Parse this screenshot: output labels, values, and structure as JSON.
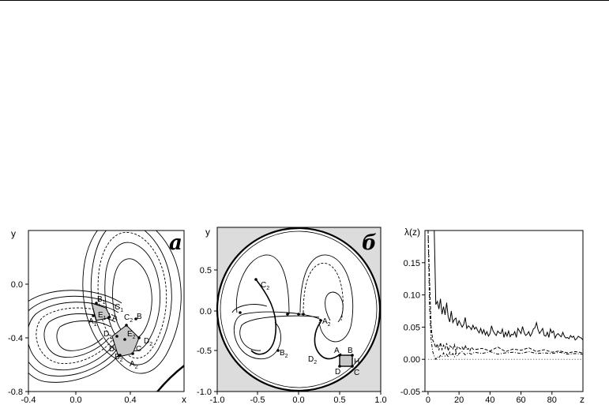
{
  "panels": {
    "a": {
      "letter": "a",
      "x_axis": "x",
      "y_axis": "y",
      "x_ticks": [
        "-0.4",
        "0.0",
        "0.4"
      ],
      "y_ticks": [
        "0.0",
        "-0.4",
        "-0.8"
      ],
      "points": {
        "B1": "B",
        "A1": "A",
        "E1": "E",
        "C1": "C",
        "A": "A",
        "D1": "D",
        "C2": "C",
        "B": "B",
        "E": "E",
        "D": "D",
        "B2": "B",
        "A2": "A",
        "C": "C",
        "D2": "D"
      }
    },
    "b": {
      "letter": "б",
      "x_axis": "x",
      "y_axis": "y",
      "x_ticks": [
        "-1.0",
        "-0.5",
        "0.0",
        "0.5",
        "1.0"
      ],
      "y_ticks": [
        "0.5",
        "0.0",
        "-0.5",
        "-1.0"
      ],
      "points": {
        "C2": "C",
        "A2": "A",
        "B2": "B",
        "D2": "D",
        "A": "A",
        "B": "B",
        "H": "H",
        "D": "D",
        "C": "C"
      }
    },
    "c": {
      "y_axis": "λ(z)",
      "x_axis": "z",
      "x_ticks": [
        "0",
        "20",
        "40",
        "60",
        "80"
      ],
      "y_ticks": [
        "0.15",
        "0.10",
        "0.05",
        "0.00",
        "-0.05"
      ]
    }
  },
  "chart_data": {
    "type": "line",
    "title": "",
    "xlabel": "z",
    "ylabel": "λ(z)",
    "xlim": [
      -2,
      100
    ],
    "ylim": [
      -0.05,
      0.2
    ],
    "series": [
      {
        "style": "solid",
        "x": [
          1,
          2,
          3,
          4,
          5,
          6,
          7,
          8,
          9,
          10,
          11,
          12,
          13,
          14,
          15,
          16,
          17,
          18,
          19,
          20,
          21,
          22,
          23,
          24,
          25,
          26,
          27,
          28,
          29,
          30,
          31,
          32,
          33,
          34,
          35,
          36,
          37,
          38,
          39,
          40,
          41,
          42,
          43,
          44,
          45,
          46,
          47,
          48,
          49,
          50,
          51,
          52,
          53,
          54,
          55,
          56,
          57,
          58,
          59,
          60,
          61,
          62,
          63,
          64,
          65,
          66,
          67,
          68,
          69,
          70,
          71,
          72,
          73,
          74,
          75,
          76,
          77,
          78,
          79,
          80,
          81,
          82,
          83,
          84,
          85,
          86,
          87,
          88,
          89,
          90,
          91,
          92,
          93,
          94,
          95,
          96,
          97,
          98,
          99,
          100,
          101,
          102
        ],
        "values": [
          0.2,
          0.2,
          0.2,
          0.2,
          0.085,
          0.09,
          0.078,
          0.094,
          0.07,
          0.082,
          0.069,
          0.088,
          0.066,
          0.058,
          0.075,
          0.057,
          0.062,
          0.064,
          0.052,
          0.06,
          0.055,
          0.05,
          0.054,
          0.065,
          0.048,
          0.052,
          0.05,
          0.046,
          0.053,
          0.047,
          0.05,
          0.045,
          0.041,
          0.048,
          0.04,
          0.046,
          0.038,
          0.043,
          0.036,
          0.04,
          0.052,
          0.044,
          0.04,
          0.037,
          0.044,
          0.041,
          0.04,
          0.047,
          0.034,
          0.042,
          0.036,
          0.044,
          0.035,
          0.039,
          0.038,
          0.043,
          0.034,
          0.048,
          0.044,
          0.04,
          0.051,
          0.042,
          0.037,
          0.039,
          0.043,
          0.036,
          0.04,
          0.047,
          0.049,
          0.057,
          0.046,
          0.04,
          0.044,
          0.048,
          0.037,
          0.036,
          0.042,
          0.034,
          0.047,
          0.041,
          0.044,
          0.033,
          0.038,
          0.04,
          0.037,
          0.035,
          0.042,
          0.036,
          0.033,
          0.034,
          0.032,
          0.037,
          0.034,
          0.036,
          0.03,
          0.032,
          0.036,
          0.034,
          0.033,
          0.03,
          0.034,
          0.031
        ]
      },
      {
        "style": "dashed",
        "x": [
          0,
          1,
          2,
          3,
          4,
          5,
          6,
          7,
          8,
          9,
          10,
          11,
          12,
          13,
          14,
          15,
          16,
          17,
          18,
          19,
          20,
          21,
          22,
          23,
          24,
          25,
          26,
          27,
          28,
          29,
          30,
          35,
          40,
          45,
          50,
          55,
          60,
          65,
          70,
          75,
          80,
          85,
          90,
          95,
          100
        ],
        "values": [
          0.2,
          0.12,
          0.05,
          0.03,
          0.025,
          0.018,
          0.024,
          0.014,
          0.026,
          0.015,
          0.022,
          0.017,
          0.025,
          0.013,
          0.021,
          0.019,
          0.016,
          0.023,
          0.012,
          0.02,
          0.018,
          0.016,
          0.019,
          0.014,
          0.022,
          0.015,
          0.017,
          0.013,
          0.019,
          0.016,
          0.015,
          0.017,
          0.013,
          0.019,
          0.012,
          0.016,
          0.014,
          0.018,
          0.012,
          0.015,
          0.011,
          0.013,
          0.01,
          0.012,
          0.01
        ]
      },
      {
        "style": "dash-dot",
        "x": [
          0,
          1,
          2,
          3,
          4,
          5,
          6,
          7,
          8,
          9,
          10,
          11,
          12,
          13,
          14,
          15,
          16,
          17,
          18,
          19,
          20,
          22,
          24,
          26,
          28,
          30,
          35,
          40,
          45,
          50,
          55,
          60,
          65,
          70,
          75,
          80,
          85,
          90,
          95,
          100
        ],
        "values": [
          0.2,
          0.08,
          0.03,
          0.012,
          0.005,
          0.0,
          0.004,
          0.002,
          0.006,
          0.004,
          0.01,
          0.005,
          0.008,
          0.003,
          0.011,
          0.006,
          0.009,
          0.004,
          0.01,
          0.005,
          0.009,
          0.012,
          0.007,
          0.01,
          0.008,
          0.011,
          0.009,
          0.012,
          0.008,
          0.01,
          0.011,
          0.009,
          0.012,
          0.009,
          0.01,
          0.009,
          0.011,
          0.008,
          0.009,
          0.008
        ]
      },
      {
        "style": "dotted",
        "x": [
          0,
          100
        ],
        "values": [
          0.0,
          0.0
        ]
      }
    ]
  }
}
